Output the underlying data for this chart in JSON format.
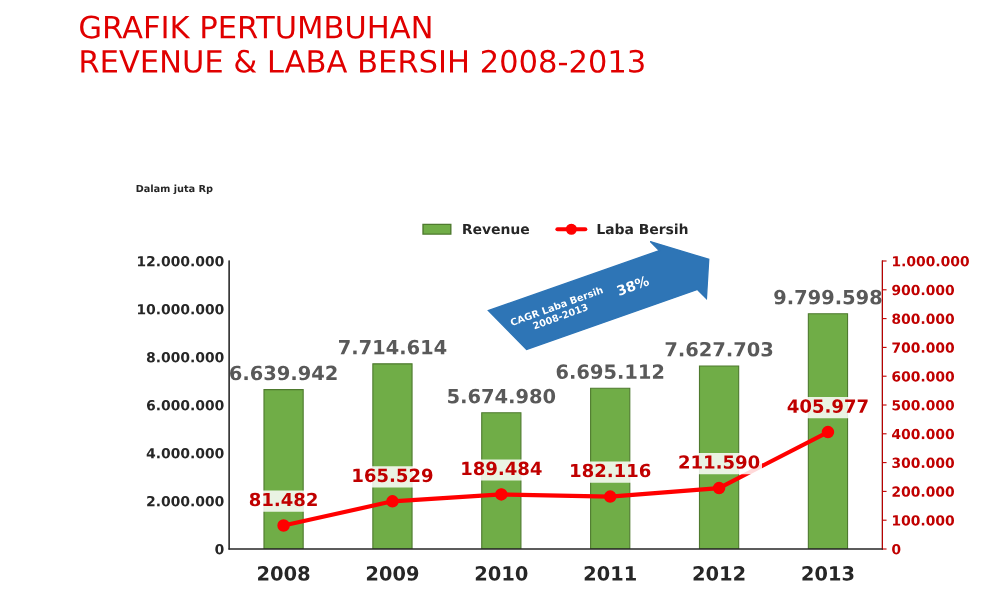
{
  "chart_data": {
    "type": "bar",
    "title": "GRAFIK PERTUMBUHAN\nREVENUE & LABA BERSIH 2008-2013",
    "categories": [
      "2008",
      "2009",
      "2010",
      "2011",
      "2012",
      "2013"
    ],
    "series": [
      {
        "name": "Revenue",
        "type": "bar",
        "color": "#70ad47",
        "values": [
          6639942,
          7714614,
          5674980,
          6695112,
          7627703,
          9799598
        ],
        "value_labels": [
          "6.639.942",
          "7.714.614",
          "5.674.980",
          "6.695.112",
          "7.627.703",
          "9.799.598"
        ]
      },
      {
        "name": "Laba Bersih",
        "type": "line",
        "axis": "y2",
        "color": "#ff0000",
        "marker": "circle",
        "values": [
          81482,
          165529,
          189484,
          182116,
          211590,
          405977
        ],
        "value_labels": [
          "81.482",
          "165.529",
          "189.484",
          "182.116",
          "211.590",
          "405.977"
        ]
      }
    ],
    "ylim": [
      0,
      12000000
    ],
    "yticks": [
      0,
      {
        "value": 2000000,
        "label": "2.000.000"
      },
      {
        "value": 4000000,
        "label": "4.000.000"
      },
      {
        "value": 6000000,
        "label": "6.000.000"
      },
      {
        "value": 8000000,
        "label": "8.000.000"
      },
      {
        "value": 10000000,
        "label": "10.000.000"
      },
      {
        "value": 12000000,
        "label": "12.000.000"
      }
    ],
    "y2lim": [
      0,
      1000000
    ],
    "y2ticks": [
      0,
      {
        "value": 100000,
        "label": "100.000"
      },
      {
        "value": 200000,
        "label": "200.000"
      },
      {
        "value": 300000,
        "label": "300.000"
      },
      {
        "value": 400000,
        "label": "400.000"
      },
      {
        "value": 500000,
        "label": "500.000"
      },
      {
        "value": 600000,
        "label": "600.000"
      },
      {
        "value": 700000,
        "label": "700.000"
      },
      {
        "value": 800000,
        "label": "800.000"
      },
      {
        "value": 900000,
        "label": "900.000"
      },
      {
        "value": 1000000,
        "label": "1.000.000"
      }
    ],
    "legend": "top",
    "annotations": [
      "Dalam juta Rp",
      "CAGR Laba Bersih\n2008-2013",
      "38%"
    ]
  }
}
